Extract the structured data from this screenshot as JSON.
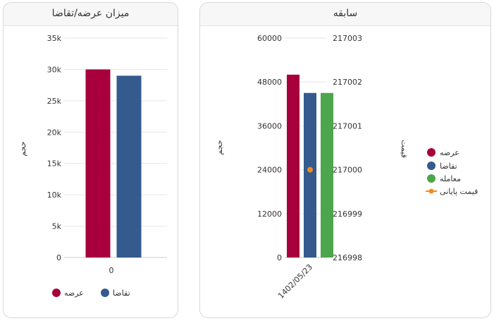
{
  "left_card": {
    "title": "میزان عرضه/تقاضا"
  },
  "right_card": {
    "title": "سابقه"
  },
  "chart_data": [
    {
      "type": "bar",
      "title": "میزان عرضه/تقاضا",
      "categories": [
        "0"
      ],
      "series": [
        {
          "name": "عرضه",
          "color": "#a8003c",
          "values": [
            30000
          ]
        },
        {
          "name": "تقاضا",
          "color": "#345a8e",
          "values": [
            29000
          ]
        }
      ],
      "ylabel": "حجم",
      "ylim": [
        0,
        35000
      ],
      "yticks": [
        0,
        5000,
        10000,
        15000,
        20000,
        25000,
        30000,
        35000
      ],
      "ytick_labels": [
        "0",
        "5k",
        "10k",
        "15k",
        "20k",
        "25k",
        "30k",
        "35k"
      ],
      "grid": true,
      "legend": [
        "عرضه",
        "تقاضا"
      ],
      "legend_position": "bottom"
    },
    {
      "type": "bar",
      "title": "سابقه",
      "categories": [
        "1402/05/23"
      ],
      "series": [
        {
          "name": "عرضه",
          "color": "#a8003c",
          "values": [
            50000
          ],
          "axis": "left"
        },
        {
          "name": "تقاضا",
          "color": "#345a8e",
          "values": [
            45000
          ],
          "axis": "left"
        },
        {
          "name": "معامله",
          "color": "#4ca64c",
          "values": [
            45000
          ],
          "axis": "left"
        },
        {
          "name": "قیمت پایانی",
          "color": "#f28c1e",
          "type": "line",
          "values": [
            217000
          ],
          "axis": "right"
        }
      ],
      "ylabel_left": "حجم",
      "ylabel_right": "قیمت",
      "ylim_left": [
        0,
        60000
      ],
      "yticks_left": [
        "0",
        "12000",
        "24000",
        "36000",
        "48000",
        "60000"
      ],
      "ylim_right": [
        216998,
        217003
      ],
      "yticks_right": [
        "216998",
        "216999",
        "217000",
        "217001",
        "217002",
        "217003"
      ],
      "grid": true,
      "legend": [
        "عرضه",
        "تقاضا",
        "معامله",
        "قیمت پایانی"
      ],
      "legend_position": "right"
    }
  ]
}
